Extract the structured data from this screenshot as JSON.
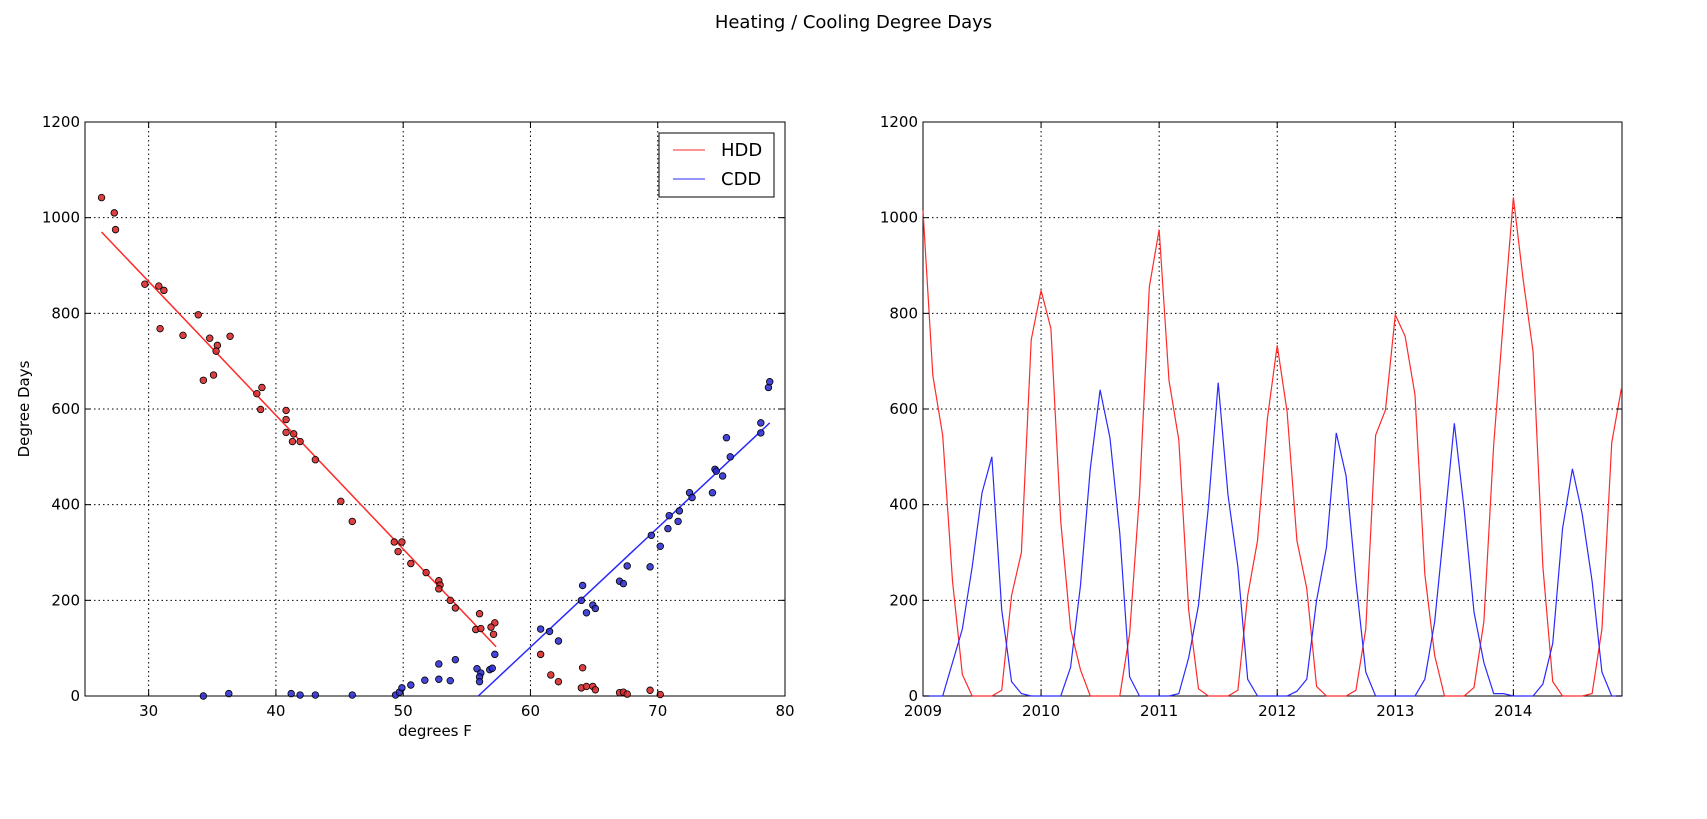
{
  "figure": {
    "title": "Heating / Cooling Degree Days"
  },
  "colors": {
    "hdd": "#ff2a2a",
    "cdd": "#2a2aff",
    "hdd_point": "#d62728",
    "cdd_point": "#2c2cd0"
  },
  "chart_data": [
    {
      "type": "scatter",
      "xlabel": "degrees F",
      "ylabel": "Degree Days",
      "xlim": [
        25,
        80
      ],
      "ylim": [
        0,
        1200
      ],
      "xticks": [
        30,
        40,
        50,
        60,
        70,
        80
      ],
      "yticks": [
        0,
        200,
        400,
        600,
        800,
        1000,
        1200
      ],
      "grid": true,
      "legend": {
        "position": "top-right",
        "entries": [
          "HDD",
          "CDD"
        ]
      },
      "fit_lines": [
        {
          "name": "HDD",
          "x": [
            26.3,
            57.3
          ],
          "y": [
            970,
            103
          ]
        },
        {
          "name": "CDD",
          "x": [
            55.9,
            78.8
          ],
          "y": [
            0,
            571
          ]
        }
      ],
      "series": [
        {
          "name": "HDD",
          "points": [
            [
              26.3,
              1042
            ],
            [
              27.3,
              1010
            ],
            [
              27.4,
              975
            ],
            [
              29.7,
              861
            ],
            [
              30.8,
              857
            ],
            [
              31.2,
              848
            ],
            [
              30.9,
              768
            ],
            [
              32.7,
              754
            ],
            [
              33.9,
              797
            ],
            [
              34.8,
              748
            ],
            [
              35.4,
              733
            ],
            [
              36.4,
              752
            ],
            [
              35.3,
              721
            ],
            [
              34.3,
              660
            ],
            [
              35.1,
              671
            ],
            [
              38.5,
              632
            ],
            [
              38.9,
              645
            ],
            [
              38.8,
              599
            ],
            [
              40.8,
              597
            ],
            [
              40.8,
              578
            ],
            [
              40.8,
              551
            ],
            [
              41.4,
              548
            ],
            [
              41.9,
              532
            ],
            [
              41.3,
              532
            ],
            [
              43.1,
              494
            ],
            [
              45.1,
              407
            ],
            [
              46.0,
              365
            ],
            [
              49.3,
              322
            ],
            [
              49.9,
              322
            ],
            [
              49.6,
              302
            ],
            [
              50.6,
              277
            ],
            [
              51.8,
              258
            ],
            [
              52.8,
              241
            ],
            [
              52.9,
              232
            ],
            [
              52.8,
              224
            ],
            [
              53.7,
              200
            ],
            [
              54.1,
              184
            ],
            [
              55.7,
              139
            ],
            [
              56.1,
              141
            ],
            [
              56.0,
              172
            ],
            [
              57.2,
              153
            ],
            [
              56.9,
              144
            ],
            [
              57.1,
              129
            ],
            [
              60.8,
              87
            ],
            [
              61.6,
              44
            ],
            [
              62.2,
              30
            ],
            [
              64.1,
              59
            ],
            [
              64.0,
              17
            ],
            [
              64.4,
              20
            ],
            [
              64.9,
              20
            ],
            [
              65.1,
              13
            ],
            [
              67.0,
              7
            ],
            [
              67.3,
              8
            ],
            [
              67.6,
              4
            ],
            [
              69.4,
              12
            ],
            [
              70.2,
              3
            ]
          ]
        },
        {
          "name": "CDD",
          "points": [
            [
              34.3,
              0
            ],
            [
              36.3,
              5
            ],
            [
              41.2,
              5
            ],
            [
              41.9,
              2
            ],
            [
              43.1,
              2
            ],
            [
              46.0,
              2
            ],
            [
              49.4,
              2
            ],
            [
              49.7,
              8
            ],
            [
              49.9,
              17
            ],
            [
              50.6,
              23
            ],
            [
              51.7,
              33
            ],
            [
              52.8,
              35
            ],
            [
              52.8,
              67
            ],
            [
              53.7,
              32
            ],
            [
              54.1,
              76
            ],
            [
              55.8,
              57
            ],
            [
              56.1,
              48
            ],
            [
              56.0,
              40
            ],
            [
              56.0,
              30
            ],
            [
              56.8,
              55
            ],
            [
              57.0,
              58
            ],
            [
              57.2,
              87
            ],
            [
              60.8,
              140
            ],
            [
              61.5,
              135
            ],
            [
              62.2,
              115
            ],
            [
              64.1,
              231
            ],
            [
              64.0,
              200
            ],
            [
              64.4,
              174
            ],
            [
              64.9,
              190
            ],
            [
              65.1,
              183
            ],
            [
              67.0,
              240
            ],
            [
              67.3,
              235
            ],
            [
              67.6,
              272
            ],
            [
              69.4,
              270
            ],
            [
              69.5,
              336
            ],
            [
              70.2,
              313
            ],
            [
              70.8,
              350
            ],
            [
              70.9,
              377
            ],
            [
              71.7,
              387
            ],
            [
              71.6,
              365
            ],
            [
              72.5,
              425
            ],
            [
              72.7,
              415
            ],
            [
              74.3,
              425
            ],
            [
              74.5,
              474
            ],
            [
              74.6,
              470
            ],
            [
              75.1,
              460
            ],
            [
              75.4,
              540
            ],
            [
              75.7,
              500
            ],
            [
              78.1,
              571
            ],
            [
              78.1,
              550
            ],
            [
              78.7,
              645
            ],
            [
              78.8,
              657
            ]
          ]
        }
      ]
    },
    {
      "type": "line",
      "xlim": [
        2009,
        2014.92
      ],
      "ylim": [
        0,
        1200
      ],
      "xticks": [
        2009,
        2010,
        2011,
        2012,
        2013,
        2014
      ],
      "yticks": [
        0,
        200,
        400,
        600,
        800,
        1000,
        1200
      ],
      "grid": true,
      "x": [
        2009,
        2009.0833,
        2009.1667,
        2009.25,
        2009.3333,
        2009.4167,
        2009.5,
        2009.5833,
        2009.6667,
        2009.75,
        2009.8333,
        2009.9167,
        2010,
        2010.0833,
        2010.1667,
        2010.25,
        2010.3333,
        2010.4167,
        2010.5,
        2010.5833,
        2010.6667,
        2010.75,
        2010.8333,
        2010.9167,
        2011,
        2011.0833,
        2011.1667,
        2011.25,
        2011.3333,
        2011.4167,
        2011.5,
        2011.5833,
        2011.6667,
        2011.75,
        2011.8333,
        2011.9167,
        2012,
        2012.0833,
        2012.1667,
        2012.25,
        2012.3333,
        2012.4167,
        2012.5,
        2012.5833,
        2012.6667,
        2012.75,
        2012.8333,
        2012.9167,
        2013,
        2013.0833,
        2013.1667,
        2013.25,
        2013.3333,
        2013.4167,
        2013.5,
        2013.5833,
        2013.6667,
        2013.75,
        2013.8333,
        2013.9167,
        2014,
        2014.0833,
        2014.1667,
        2014.25,
        2014.3333,
        2014.4167,
        2014.5,
        2014.5833,
        2014.6667,
        2014.75,
        2014.8333,
        2014.9167
      ],
      "series": [
        {
          "name": "HDD",
          "values": [
            1015,
            670,
            545,
            240,
            45,
            0,
            0,
            0,
            12,
            210,
            300,
            745,
            848,
            768,
            365,
            140,
            55,
            0,
            0,
            0,
            0,
            130,
            420,
            855,
            975,
            660,
            535,
            180,
            15,
            0,
            0,
            0,
            12,
            210,
            325,
            580,
            733,
            595,
            325,
            225,
            20,
            0,
            0,
            0,
            12,
            140,
            545,
            598,
            797,
            752,
            630,
            255,
            85,
            0,
            0,
            0,
            18,
            155,
            525,
            790,
            1042,
            870,
            720,
            270,
            30,
            0,
            0,
            0,
            5,
            140,
            530,
            645
          ]
        },
        {
          "name": "CDD",
          "values": [
            0,
            0,
            0,
            70,
            140,
            270,
            425,
            500,
            180,
            30,
            5,
            0,
            0,
            0,
            0,
            60,
            230,
            475,
            640,
            540,
            340,
            40,
            0,
            0,
            0,
            0,
            5,
            80,
            190,
            395,
            655,
            420,
            270,
            35,
            0,
            0,
            0,
            0,
            10,
            35,
            200,
            310,
            550,
            460,
            240,
            50,
            0,
            0,
            0,
            0,
            0,
            35,
            155,
            360,
            570,
            390,
            175,
            70,
            5,
            5,
            0,
            0,
            0,
            25,
            110,
            350,
            475,
            380,
            240,
            50,
            0,
            0
          ]
        }
      ]
    }
  ]
}
